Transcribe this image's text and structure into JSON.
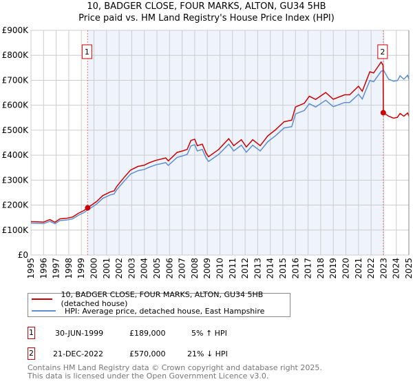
{
  "chart_data": {
    "type": "line",
    "title": "10, BADGER CLOSE, FOUR MARKS, ALTON, GU34 5HB",
    "subtitle": "Price paid vs. HM Land Registry's House Price Index (HPI)",
    "xlim": [
      1995,
      2025
    ],
    "ylim": [
      0,
      900000
    ],
    "x_ticks": [
      "1995",
      "1996",
      "1997",
      "1998",
      "1999",
      "2000",
      "2001",
      "2002",
      "2003",
      "2004",
      "2005",
      "2006",
      "2007",
      "2008",
      "2009",
      "2010",
      "2011",
      "2012",
      "2013",
      "2014",
      "2015",
      "2016",
      "2017",
      "2018",
      "2019",
      "2020",
      "2021",
      "2022",
      "2023",
      "2024",
      "2025"
    ],
    "y_ticks": [
      {
        "v": 0,
        "label": "£0"
      },
      {
        "v": 100000,
        "label": "£100K"
      },
      {
        "v": 200000,
        "label": "£200K"
      },
      {
        "v": 300000,
        "label": "£300K"
      },
      {
        "v": 400000,
        "label": "£400K"
      },
      {
        "v": 500000,
        "label": "£500K"
      },
      {
        "v": 600000,
        "label": "£600K"
      },
      {
        "v": 700000,
        "label": "£700K"
      },
      {
        "v": 800000,
        "label": "£800K"
      },
      {
        "v": 900000,
        "label": "£900K"
      }
    ],
    "grid": true,
    "shaded_range": [
      1999.5,
      2022.97
    ],
    "series": [
      {
        "name": "10, BADGER CLOSE, FOUR MARKS, ALTON, GU34 5HB (detached house)",
        "color": "#cc0000",
        "points": [
          [
            1995.0,
            134
          ],
          [
            1995.5,
            133
          ],
          [
            1996.0,
            132
          ],
          [
            1996.5,
            142
          ],
          [
            1996.9,
            131
          ],
          [
            1997.3,
            145
          ],
          [
            1997.8,
            147
          ],
          [
            1998.3,
            152
          ],
          [
            1998.8,
            168
          ],
          [
            1999.2,
            178
          ],
          [
            1999.5,
            189
          ],
          [
            2000.2,
            214
          ],
          [
            2000.7,
            238
          ],
          [
            2001.3,
            253
          ],
          [
            2001.6,
            257
          ],
          [
            2001.8,
            274
          ],
          [
            2002.4,
            311
          ],
          [
            2002.9,
            340
          ],
          [
            2003.5,
            355
          ],
          [
            2004.0,
            360
          ],
          [
            2004.4,
            370
          ],
          [
            2004.9,
            379
          ],
          [
            2005.7,
            389
          ],
          [
            2005.9,
            377
          ],
          [
            2006.6,
            411
          ],
          [
            2007.1,
            418
          ],
          [
            2007.4,
            423
          ],
          [
            2007.7,
            459
          ],
          [
            2008.0,
            464
          ],
          [
            2008.2,
            438
          ],
          [
            2008.6,
            444
          ],
          [
            2008.9,
            408
          ],
          [
            2009.1,
            394
          ],
          [
            2009.9,
            423
          ],
          [
            2010.7,
            466
          ],
          [
            2011.1,
            438
          ],
          [
            2011.7,
            462
          ],
          [
            2012.1,
            433
          ],
          [
            2012.6,
            462
          ],
          [
            2013.2,
            438
          ],
          [
            2013.8,
            477
          ],
          [
            2014.4,
            501
          ],
          [
            2015.1,
            534
          ],
          [
            2015.7,
            540
          ],
          [
            2016.0,
            593
          ],
          [
            2016.7,
            608
          ],
          [
            2017.1,
            636
          ],
          [
            2017.6,
            623
          ],
          [
            2018.4,
            651
          ],
          [
            2019.0,
            624
          ],
          [
            2019.9,
            642
          ],
          [
            2020.3,
            642
          ],
          [
            2021.0,
            676
          ],
          [
            2021.3,
            656
          ],
          [
            2021.9,
            734
          ],
          [
            2022.2,
            729
          ],
          [
            2022.8,
            773
          ],
          [
            2022.95,
            760
          ],
          [
            2022.97,
            570
          ],
          [
            2023.4,
            556
          ],
          [
            2023.8,
            548
          ],
          [
            2024.1,
            552
          ],
          [
            2024.3,
            567
          ],
          [
            2024.6,
            556
          ],
          [
            2024.9,
            569
          ],
          [
            2025.0,
            556
          ]
        ]
      },
      {
        "name": "HPI: Average price, detached house, East Hampshire",
        "color": "#5b8fd4",
        "points": [
          [
            1995.0,
            128
          ],
          [
            1995.5,
            127
          ],
          [
            1996.0,
            126
          ],
          [
            1996.5,
            135
          ],
          [
            1996.9,
            125
          ],
          [
            1997.3,
            138
          ],
          [
            1997.8,
            140
          ],
          [
            1998.3,
            145
          ],
          [
            1998.8,
            160
          ],
          [
            1999.2,
            170
          ],
          [
            1999.5,
            180
          ],
          [
            2000.2,
            204
          ],
          [
            2000.7,
            227
          ],
          [
            2001.3,
            241
          ],
          [
            2001.6,
            245
          ],
          [
            2001.8,
            261
          ],
          [
            2002.4,
            296
          ],
          [
            2002.9,
            324
          ],
          [
            2003.5,
            338
          ],
          [
            2004.0,
            343
          ],
          [
            2004.4,
            352
          ],
          [
            2004.9,
            361
          ],
          [
            2005.7,
            370
          ],
          [
            2005.9,
            359
          ],
          [
            2006.6,
            391
          ],
          [
            2007.1,
            398
          ],
          [
            2007.4,
            403
          ],
          [
            2007.7,
            437
          ],
          [
            2008.0,
            442
          ],
          [
            2008.2,
            417
          ],
          [
            2008.6,
            423
          ],
          [
            2008.9,
            389
          ],
          [
            2009.1,
            375
          ],
          [
            2009.9,
            403
          ],
          [
            2010.7,
            444
          ],
          [
            2011.1,
            417
          ],
          [
            2011.7,
            440
          ],
          [
            2012.1,
            412
          ],
          [
            2012.6,
            440
          ],
          [
            2013.2,
            417
          ],
          [
            2013.8,
            454
          ],
          [
            2014.4,
            477
          ],
          [
            2015.1,
            509
          ],
          [
            2015.7,
            514
          ],
          [
            2016.0,
            565
          ],
          [
            2016.7,
            579
          ],
          [
            2017.1,
            606
          ],
          [
            2017.6,
            593
          ],
          [
            2018.4,
            620
          ],
          [
            2019.0,
            594
          ],
          [
            2019.9,
            611
          ],
          [
            2020.3,
            611
          ],
          [
            2021.0,
            644
          ],
          [
            2021.3,
            625
          ],
          [
            2021.9,
            699
          ],
          [
            2022.2,
            694
          ],
          [
            2022.8,
            736
          ],
          [
            2023.0,
            739
          ],
          [
            2023.4,
            704
          ],
          [
            2023.8,
            696
          ],
          [
            2024.1,
            699
          ],
          [
            2024.3,
            718
          ],
          [
            2024.6,
            704
          ],
          [
            2024.9,
            720
          ],
          [
            2025.0,
            704
          ]
        ]
      }
    ],
    "sales": [
      {
        "id": "1",
        "x": 1999.5,
        "value": 189000,
        "date": "30-JUN-1999",
        "price": "£189,000",
        "hpi": "5% ↑ HPI"
      },
      {
        "id": "2",
        "x": 2022.97,
        "value": 570000,
        "date": "21-DEC-2022",
        "price": "£570,000",
        "hpi": "21% ↓ HPI"
      }
    ]
  },
  "legend": {
    "red_label": "10, BADGER CLOSE, FOUR MARKS, ALTON, GU34 5HB (detached house)",
    "blue_label": "HPI: Average price, detached house, East Hampshire"
  },
  "footer": {
    "line1": "Contains HM Land Registry data © Crown copyright and database right 2025.",
    "line2": "This data is licensed under the Open Government Licence v3.0."
  }
}
